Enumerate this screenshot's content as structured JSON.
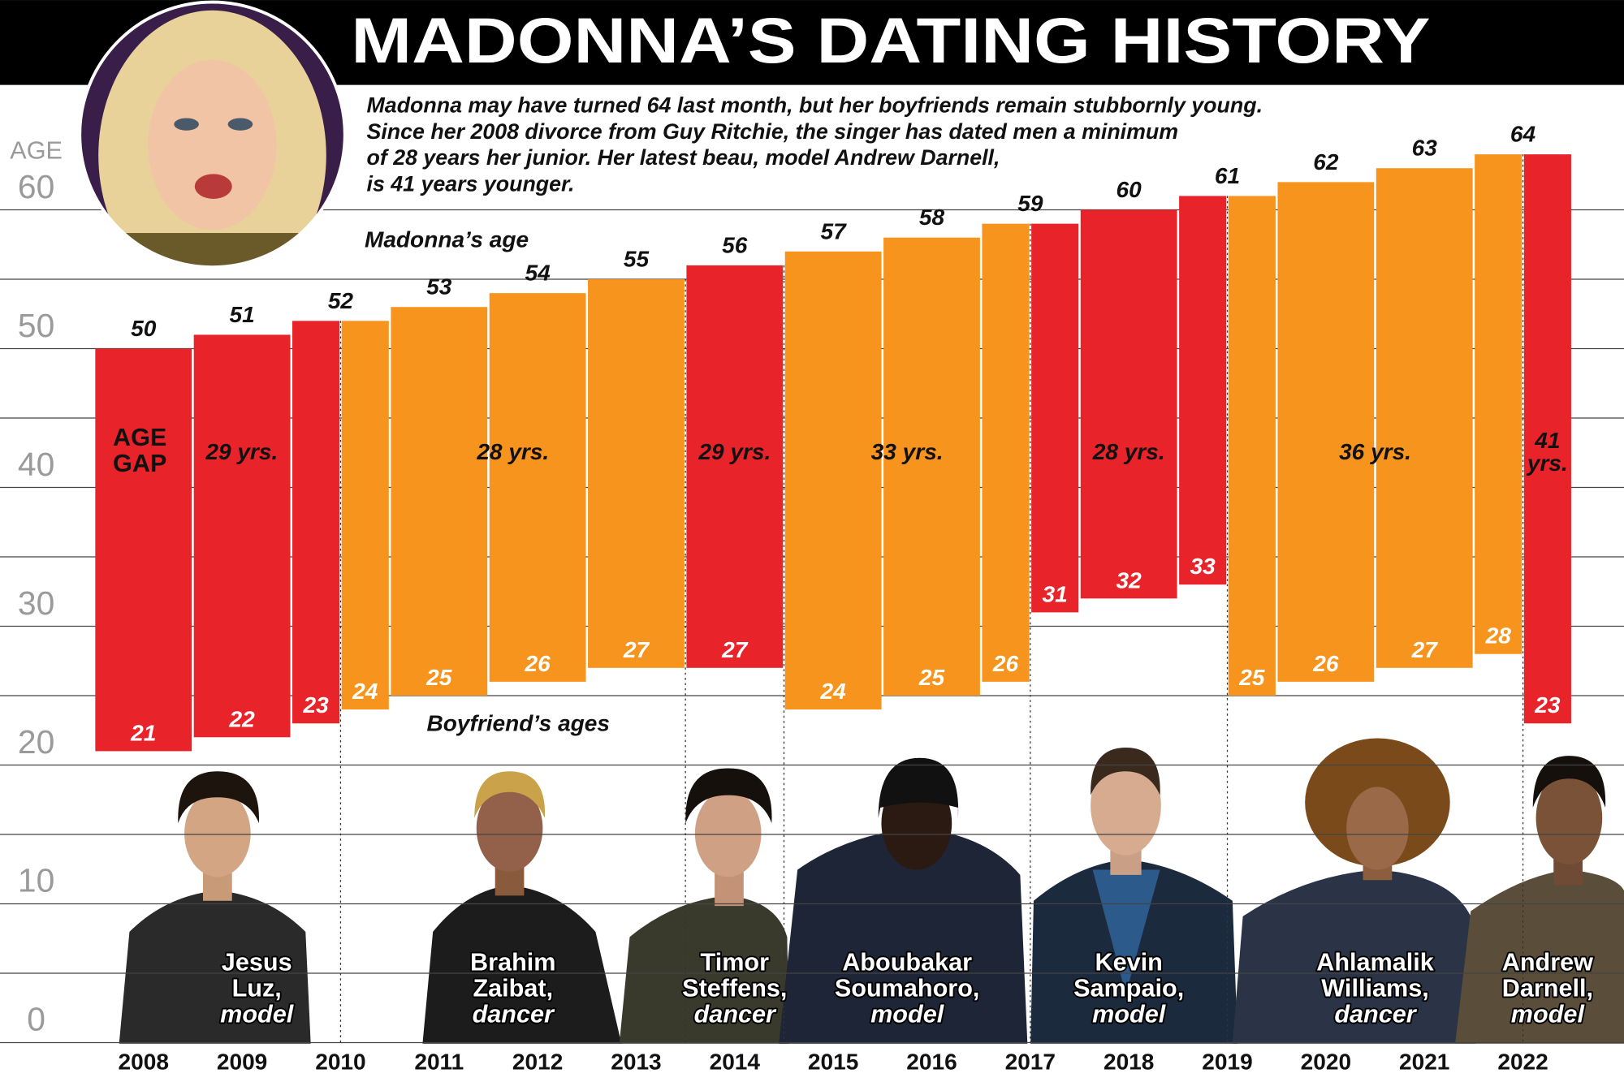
{
  "chart_data": {
    "type": "floating-bar",
    "title": "MADONNA’S DATING HISTORY",
    "subtitle": [
      "Madonna may have turned 64 last month, but her boyfriends remain stubbornly young.",
      "Since her 2008 divorce from Guy Ritchie, the singer has dated men a minimum",
      "of 28 years her junior. Her latest beau, model Andrew Darnell,",
      "is 41 years younger."
    ],
    "y_axis_label": "AGE",
    "annotations": {
      "madonna": "Madonna’s age",
      "boyfriends": "Boyfriend’s ages",
      "gap": [
        "AGE",
        "GAP"
      ]
    },
    "x": [
      2008,
      2009,
      2010,
      2011,
      2012,
      2013,
      2014,
      2015,
      2016,
      2017,
      2018,
      2019,
      2020,
      2021,
      2022
    ],
    "xlim": [
      2007.5,
      2022.5
    ],
    "ylim": [
      0,
      69
    ],
    "yticks": [
      0,
      10,
      20,
      30,
      40,
      50,
      60
    ],
    "minor_yticks": [
      5,
      15,
      25,
      35,
      45,
      55
    ],
    "grid": true,
    "madonna_ages": [
      50,
      51,
      52,
      53,
      54,
      55,
      56,
      57,
      58,
      59,
      60,
      61,
      62,
      63,
      64
    ],
    "boyfriends": [
      {
        "label": [
          "Jesus",
          "Luz,",
          "model"
        ],
        "color": "#e8232a",
        "age_gap": "29 yrs.",
        "periods": [
          {
            "x": [
              2007.5,
              2008.5
            ],
            "age": 21
          },
          {
            "x": [
              2008.5,
              2009.5
            ],
            "age": 22
          },
          {
            "x": [
              2009.5,
              2010
            ],
            "age": 23
          }
        ]
      },
      {
        "label": [
          "Brahim",
          "Zaibat,",
          "dancer"
        ],
        "color": "#f7941d",
        "age_gap": "28 yrs.",
        "periods": [
          {
            "x": [
              2010,
              2010.5
            ],
            "age": 24
          },
          {
            "x": [
              2010.5,
              2011.5
            ],
            "age": 25
          },
          {
            "x": [
              2011.5,
              2012.5
            ],
            "age": 26
          },
          {
            "x": [
              2012.5,
              2013.5
            ],
            "age": 27
          }
        ]
      },
      {
        "label": [
          "Timor",
          "Steffens,",
          "dancer"
        ],
        "color": "#e8232a",
        "age_gap": "29 yrs.",
        "periods": [
          {
            "x": [
              2013.5,
              2014.5
            ],
            "age": 27
          }
        ]
      },
      {
        "label": [
          "Aboubakar",
          "Soumahoro,",
          "model"
        ],
        "color": "#f7941d",
        "age_gap": "33 yrs.",
        "periods": [
          {
            "x": [
              2014.5,
              2015.5
            ],
            "age": 24
          },
          {
            "x": [
              2015.5,
              2016.5
            ],
            "age": 25
          },
          {
            "x": [
              2016.5,
              2017
            ],
            "age": 26
          }
        ]
      },
      {
        "label": [
          "Kevin",
          "Sampaio,",
          "model"
        ],
        "color": "#e8232a",
        "age_gap": "28 yrs.",
        "periods": [
          {
            "x": [
              2017,
              2017.5
            ],
            "age": 31
          },
          {
            "x": [
              2017.5,
              2018.5
            ],
            "age": 32
          },
          {
            "x": [
              2018.5,
              2019
            ],
            "age": 33
          }
        ]
      },
      {
        "label": [
          "Ahlamalik",
          "Williams,",
          "dancer"
        ],
        "color": "#f7941d",
        "age_gap": "36 yrs.",
        "periods": [
          {
            "x": [
              2019,
              2019.5
            ],
            "age": 25
          },
          {
            "x": [
              2019.5,
              2020.5
            ],
            "age": 26
          },
          {
            "x": [
              2020.5,
              2021.5
            ],
            "age": 27
          },
          {
            "x": [
              2021.5,
              2022
            ],
            "age": 28
          }
        ]
      },
      {
        "label": [
          "Andrew",
          "Darnell,",
          "model"
        ],
        "color": "#e8232a",
        "age_gap": [
          "41",
          "yrs."
        ],
        "periods": [
          {
            "x": [
              2022,
              2022.5
            ],
            "age": 23
          }
        ]
      }
    ]
  }
}
